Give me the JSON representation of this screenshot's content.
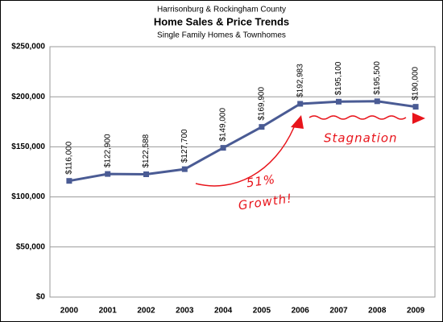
{
  "chart_data": {
    "type": "line",
    "title": "Harrisonburg & Rockingham County",
    "subtitle": "Home Sales & Price Trends",
    "subtitle2": "Single Family Homes & Townhomes",
    "categories": [
      "2000",
      "2001",
      "2002",
      "2003",
      "2004",
      "2005",
      "2006",
      "2007",
      "2008",
      "2009"
    ],
    "values": [
      116000,
      122900,
      122588,
      127700,
      149000,
      169900,
      192983,
      195100,
      195500,
      190000
    ],
    "value_labels": [
      "$116,000",
      "$122,900",
      "$122,588",
      "$127,700",
      "$149,000",
      "$169,900",
      "$192,983",
      "$195,100",
      "$195,500",
      "$190,000"
    ],
    "color": "#4a5b94",
    "ylim": [
      0,
      250000
    ],
    "yticks": [
      {
        "value": 0,
        "label": "$0"
      },
      {
        "value": 50000,
        "label": "$50,000"
      },
      {
        "value": 100000,
        "label": "$100,000"
      },
      {
        "value": 150000,
        "label": "$150,000"
      },
      {
        "value": 200000,
        "label": "$200,000"
      },
      {
        "value": 250000,
        "label": "$250,000"
      }
    ],
    "grid": true,
    "annotations": [
      "51%",
      "Growth!",
      "Stagnation"
    ]
  }
}
